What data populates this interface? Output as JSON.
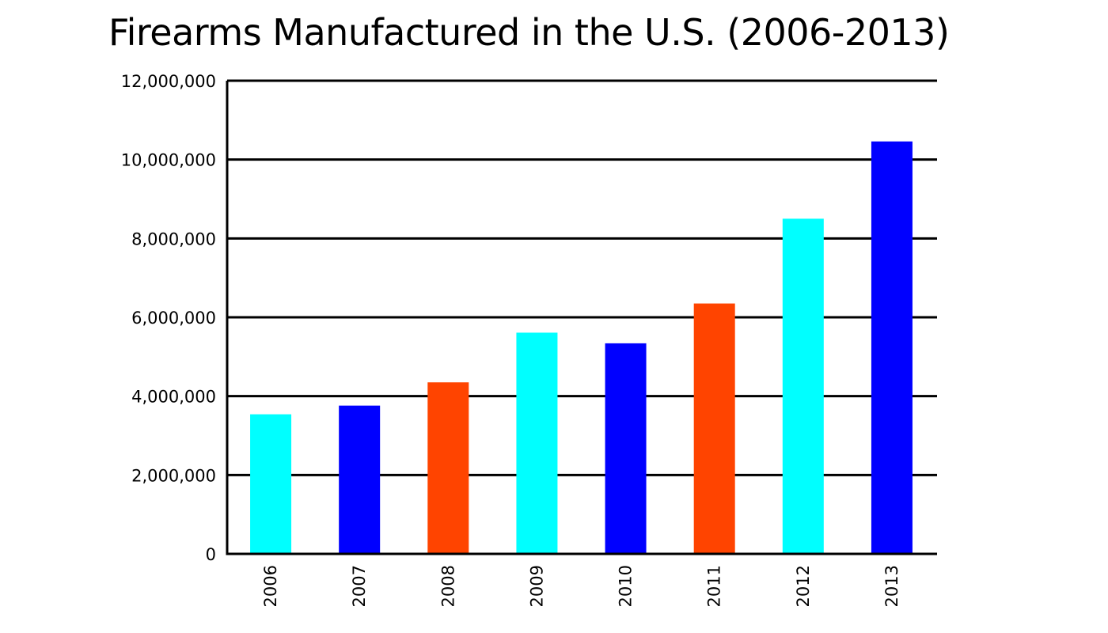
{
  "chart_data": {
    "type": "bar",
    "title": "Firearms Manufactured in the U.S. (2006-2013)",
    "xlabel": "",
    "ylabel": "",
    "categories": [
      "2006",
      "2007",
      "2008",
      "2009",
      "2010",
      "2011",
      "2012",
      "2013"
    ],
    "values": [
      3540000,
      3760000,
      4350000,
      5610000,
      5340000,
      6350000,
      8500000,
      10460000
    ],
    "bar_colors": [
      "#00FFFF",
      "#0000FF",
      "#FF4400",
      "#00FFFF",
      "#0000FF",
      "#FF4400",
      "#00FFFF",
      "#0000FF"
    ],
    "ylim": [
      0,
      12000000
    ],
    "yticks": [
      0,
      2000000,
      4000000,
      6000000,
      8000000,
      10000000,
      12000000
    ],
    "ytick_labels": [
      "0",
      "2,000,000",
      "4,000,000",
      "6,000,000",
      "8,000,000",
      "10,000,000",
      "12,000,000"
    ],
    "grid": true,
    "legend": "none"
  }
}
